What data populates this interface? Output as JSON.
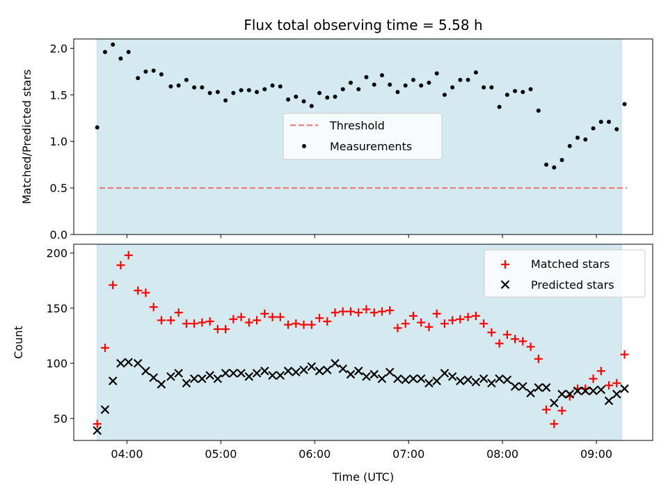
{
  "chart_data": [
    {
      "type": "scatter",
      "title": "Flux total observing time = 5.58 h",
      "xlabel": "",
      "ylabel": "Matched/Predicted stars",
      "x_unit": "time (UTC, HH:MM)",
      "xlim": [
        "03:26",
        "09:36"
      ],
      "ylim": [
        0.0,
        2.1
      ],
      "yticks": [
        0.0,
        0.5,
        1.0,
        1.5,
        2.0
      ],
      "ytick_labels": [
        "0.0",
        "0.5",
        "1.0",
        "1.5",
        "2.0"
      ],
      "observing_window": [
        "03:41",
        "09:16"
      ],
      "threshold": {
        "name": "Threshold",
        "value": 0.5,
        "color": "#f07c7c",
        "style": "dashed"
      },
      "legend": {
        "position": "center",
        "entries": [
          "Threshold",
          "Measurements"
        ]
      },
      "series": [
        {
          "name": "Measurements",
          "color": "#000000",
          "marker": "dot",
          "x": [
            "03:41",
            "03:46",
            "03:51",
            "03:56",
            "04:01",
            "04:07",
            "04:12",
            "04:17",
            "04:22",
            "04:28",
            "04:33",
            "04:38",
            "04:43",
            "04:48",
            "04:53",
            "04:58",
            "05:03",
            "05:08",
            "05:13",
            "05:18",
            "05:23",
            "05:28",
            "05:33",
            "05:38",
            "05:43",
            "05:48",
            "05:53",
            "05:58",
            "06:03",
            "06:08",
            "06:13",
            "06:18",
            "06:23",
            "06:28",
            "06:33",
            "06:38",
            "06:43",
            "06:48",
            "06:53",
            "06:58",
            "07:03",
            "07:08",
            "07:13",
            "07:18",
            "07:23",
            "07:28",
            "07:33",
            "07:38",
            "07:43",
            "07:48",
            "07:53",
            "07:58",
            "08:03",
            "08:08",
            "08:13",
            "08:18",
            "08:23",
            "08:28",
            "08:33",
            "08:38",
            "08:43",
            "08:48",
            "08:53",
            "08:58",
            "09:03",
            "09:08",
            "09:13",
            "09:18"
          ],
          "y": [
            1.15,
            1.96,
            2.04,
            1.89,
            1.96,
            1.68,
            1.75,
            1.76,
            1.72,
            1.59,
            1.6,
            1.66,
            1.58,
            1.58,
            1.52,
            1.53,
            1.44,
            1.52,
            1.55,
            1.55,
            1.53,
            1.56,
            1.6,
            1.59,
            1.45,
            1.48,
            1.43,
            1.38,
            1.52,
            1.47,
            1.48,
            1.56,
            1.63,
            1.56,
            1.69,
            1.61,
            1.71,
            1.61,
            1.53,
            1.6,
            1.66,
            1.6,
            1.63,
            1.73,
            1.5,
            1.58,
            1.66,
            1.66,
            1.74,
            1.58,
            1.58,
            1.37,
            1.5,
            1.54,
            1.53,
            1.56,
            1.33,
            0.75,
            0.72,
            0.8,
            0.95,
            1.04,
            1.02,
            1.14,
            1.21,
            1.21,
            1.13,
            1.4
          ]
        }
      ]
    },
    {
      "type": "scatter",
      "xlabel": "Time (UTC)",
      "ylabel": "Count",
      "xlim": [
        "03:26",
        "09:36"
      ],
      "ylim": [
        30,
        208
      ],
      "xticks": [
        "04:00",
        "05:00",
        "06:00",
        "07:00",
        "08:00",
        "09:00"
      ],
      "xtick_labels": [
        "04:00",
        "05:00",
        "06:00",
        "07:00",
        "08:00",
        "09:00"
      ],
      "yticks": [
        50,
        100,
        150,
        200
      ],
      "ytick_labels": [
        "50",
        "100",
        "150",
        "200"
      ],
      "observing_window": [
        "03:41",
        "09:16"
      ],
      "legend": {
        "position": "top-right",
        "entries": [
          "Matched stars",
          "Predicted stars"
        ]
      },
      "series": [
        {
          "name": "Matched stars",
          "color": "#ff0000",
          "marker": "plus",
          "x": [
            "03:41",
            "03:46",
            "03:51",
            "03:56",
            "04:01",
            "04:07",
            "04:12",
            "04:17",
            "04:22",
            "04:28",
            "04:33",
            "04:38",
            "04:43",
            "04:48",
            "04:53",
            "04:58",
            "05:03",
            "05:08",
            "05:13",
            "05:18",
            "05:23",
            "05:28",
            "05:33",
            "05:38",
            "05:43",
            "05:48",
            "05:53",
            "05:58",
            "06:03",
            "06:08",
            "06:13",
            "06:18",
            "06:23",
            "06:28",
            "06:33",
            "06:38",
            "06:43",
            "06:48",
            "06:53",
            "06:58",
            "07:03",
            "07:08",
            "07:13",
            "07:18",
            "07:23",
            "07:28",
            "07:33",
            "07:38",
            "07:43",
            "07:48",
            "07:53",
            "07:58",
            "08:03",
            "08:08",
            "08:13",
            "08:18",
            "08:23",
            "08:28",
            "08:33",
            "08:38",
            "08:43",
            "08:48",
            "08:53",
            "08:58",
            "09:03",
            "09:08",
            "09:13",
            "09:18"
          ],
          "y": [
            45,
            114,
            171,
            189,
            198,
            166,
            164,
            151,
            139,
            139,
            146,
            136,
            136,
            137,
            138,
            131,
            131,
            140,
            142,
            137,
            139,
            145,
            142,
            142,
            135,
            136,
            135,
            135,
            141,
            138,
            146,
            147,
            147,
            146,
            149,
            146,
            147,
            148,
            132,
            136,
            143,
            137,
            133,
            145,
            136,
            139,
            140,
            142,
            143,
            136,
            128,
            118,
            126,
            122,
            120,
            115,
            104,
            58,
            45,
            57,
            70,
            77,
            77,
            86,
            93,
            80,
            82,
            108
          ]
        },
        {
          "name": "Predicted stars",
          "color": "#000000",
          "marker": "x",
          "x": [
            "03:41",
            "03:46",
            "03:51",
            "03:56",
            "04:01",
            "04:07",
            "04:12",
            "04:17",
            "04:22",
            "04:28",
            "04:33",
            "04:38",
            "04:43",
            "04:48",
            "04:53",
            "04:58",
            "05:03",
            "05:08",
            "05:13",
            "05:18",
            "05:23",
            "05:28",
            "05:33",
            "05:38",
            "05:43",
            "05:48",
            "05:53",
            "05:58",
            "06:03",
            "06:08",
            "06:13",
            "06:18",
            "06:23",
            "06:28",
            "06:33",
            "06:38",
            "06:43",
            "06:48",
            "06:53",
            "06:58",
            "07:03",
            "07:08",
            "07:13",
            "07:18",
            "07:23",
            "07:28",
            "07:33",
            "07:38",
            "07:43",
            "07:48",
            "07:53",
            "07:58",
            "08:03",
            "08:08",
            "08:13",
            "08:18",
            "08:23",
            "08:28",
            "08:33",
            "08:38",
            "08:43",
            "08:48",
            "08:53",
            "08:58",
            "09:03",
            "09:08",
            "09:13",
            "09:18"
          ],
          "y": [
            39,
            58,
            84,
            100,
            101,
            100,
            93,
            87,
            81,
            88,
            91,
            82,
            86,
            86,
            89,
            86,
            91,
            91,
            91,
            88,
            91,
            93,
            89,
            89,
            93,
            92,
            94,
            97,
            93,
            94,
            100,
            95,
            90,
            93,
            88,
            90,
            86,
            92,
            86,
            85,
            86,
            86,
            82,
            84,
            91,
            88,
            84,
            85,
            83,
            86,
            82,
            86,
            85,
            79,
            79,
            73,
            78,
            78,
            64,
            72,
            72,
            75,
            75,
            75,
            76,
            66,
            72,
            77
          ]
        }
      ]
    }
  ]
}
